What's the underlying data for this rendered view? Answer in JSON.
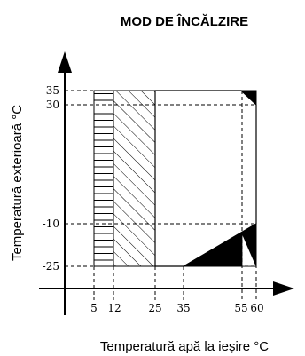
{
  "title": "MOD DE ÎNCĂLZIRE",
  "x_axis": {
    "label": "Temperatură apă la ieșire °C",
    "ticks": [
      "5",
      "12",
      "25",
      "35",
      "55",
      "60"
    ]
  },
  "y_axis": {
    "label": "Temperatură exterioară °C",
    "ticks": [
      "35",
      "30",
      "-10",
      "-25"
    ]
  },
  "colors": {
    "ink": "#000000",
    "background": "#ffffff"
  }
}
